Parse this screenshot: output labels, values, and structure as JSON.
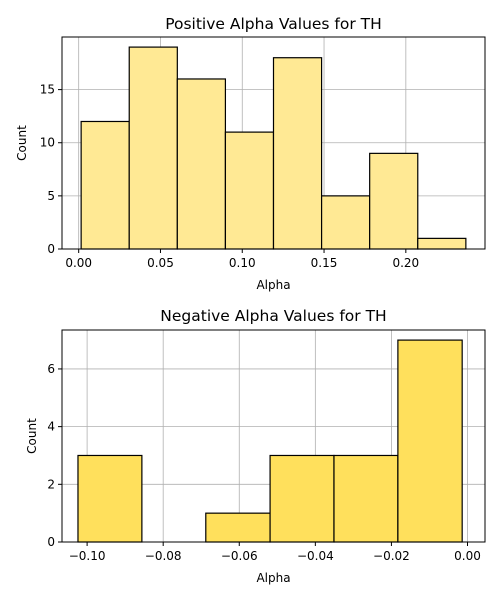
{
  "chart_data": [
    {
      "type": "bar",
      "subtype": "histogram",
      "title": "Positive Alpha Values for TH",
      "xlabel": "Alpha",
      "ylabel": "Count",
      "bin_edges": [
        0.0015,
        0.0309,
        0.0603,
        0.0897,
        0.1191,
        0.1485,
        0.1779,
        0.2073,
        0.2367
      ],
      "values": [
        12,
        19,
        16,
        11,
        18,
        5,
        9,
        1
      ],
      "xlim": [
        -0.0102,
        0.2484
      ],
      "ylim": [
        0,
        19.95
      ],
      "xticks": [
        0.0,
        0.05,
        0.1,
        0.15,
        0.2
      ],
      "xtick_labels": [
        "0.00",
        "0.05",
        "0.10",
        "0.15",
        "0.20"
      ],
      "yticks": [
        0,
        5,
        10,
        15
      ],
      "ytick_labels": [
        "0",
        "5",
        "10",
        "15"
      ],
      "bar_color": "#ffe994",
      "grid": true
    },
    {
      "type": "bar",
      "subtype": "histogram",
      "title": "Negative Alpha Values for TH",
      "xlabel": "Alpha",
      "ylabel": "Count",
      "bin_edges": [
        -0.1024,
        -0.0856,
        -0.0688,
        -0.0519,
        -0.0351,
        -0.0183,
        -0.0014
      ],
      "values": [
        3,
        0,
        1,
        3,
        3,
        7
      ],
      "xlim": [
        -0.1066,
        0.0046
      ],
      "ylim": [
        0,
        7.35
      ],
      "xticks": [
        -0.1,
        -0.08,
        -0.06,
        -0.04,
        -0.02,
        0.0
      ],
      "xtick_labels": [
        "−0.10",
        "−0.08",
        "−0.06",
        "−0.04",
        "−0.02",
        "0.00"
      ],
      "yticks": [
        0,
        2,
        4,
        6
      ],
      "ytick_labels": [
        "0",
        "2",
        "4",
        "6"
      ],
      "bar_color": "#ffe05c",
      "grid": true
    }
  ]
}
